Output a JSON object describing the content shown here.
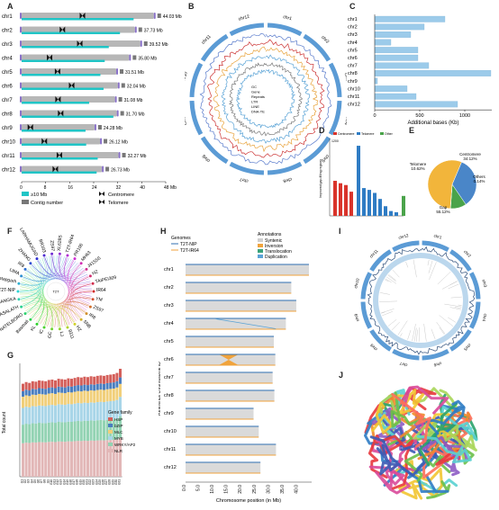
{
  "panels": {
    "a": {
      "label": "A",
      "rows": [
        {
          "chr": "chr1",
          "size": "44.03 Mb",
          "len": 44.03,
          "cen": 0.46
        },
        {
          "chr": "chr2",
          "size": "37.73 Mb",
          "len": 37.73,
          "cen": 0.36
        },
        {
          "chr": "chr3",
          "size": "39.52 Mb",
          "len": 39.52,
          "cen": 0.49
        },
        {
          "chr": "chr4",
          "size": "35.80 Mb",
          "len": 35.8,
          "cen": 0.26
        },
        {
          "chr": "chr5",
          "size": "31.51 Mb",
          "len": 31.51,
          "cen": 0.38
        },
        {
          "chr": "chr6",
          "size": "32.04 Mb",
          "len": 32.04,
          "cen": 0.52
        },
        {
          "chr": "chr7",
          "size": "31.08 Mb",
          "len": 31.08,
          "cen": 0.39
        },
        {
          "chr": "chr8",
          "size": "31.70 Mb",
          "len": 31.7,
          "cen": 0.41
        },
        {
          "chr": "chr9",
          "size": "24.28 Mb",
          "len": 24.28,
          "cen": 0.12
        },
        {
          "chr": "chr10",
          "size": "26.12 Mb",
          "len": 26.12,
          "cen": 0.29
        },
        {
          "chr": "chr11",
          "size": "32.27 Mb",
          "len": 32.27,
          "cen": 0.39
        },
        {
          "chr": "chr12",
          "size": "26.73 Mb",
          "len": 26.73,
          "cen": 0.42
        }
      ],
      "ticks": [
        "0",
        "8",
        "16",
        "24",
        "32",
        "40",
        "48 Mb"
      ],
      "legend": [
        "≥10 Mb",
        "Centromere",
        "Contig number",
        "Telomere"
      ]
    },
    "b": {
      "label": "B",
      "tracks": [
        "GC",
        "Gene",
        "Repeats",
        "LTR",
        "LINE",
        "DNA-TE"
      ],
      "chrs": [
        "chr1",
        "chr2",
        "chr3",
        "chr4",
        "chr5",
        "chr6",
        "chr7",
        "chr8",
        "chr9",
        "chr10",
        "chr11",
        "chr12"
      ]
    },
    "c": {
      "label": "C",
      "chart_data": {
        "type": "bar",
        "categories": [
          "chr1",
          "chr2",
          "chr3",
          "chr4",
          "chr5",
          "chr6",
          "chr7",
          "chr8",
          "chr9",
          "chr10",
          "chr11",
          "chr12"
        ],
        "values": [
          780,
          550,
          400,
          180,
          480,
          480,
          600,
          1290,
          30,
          360,
          460,
          920
        ],
        "xlabel": "Additional bases (Kb)",
        "xticks": [
          "0",
          "500",
          "1000"
        ],
        "xlim": [
          0,
          1300
        ]
      }
    },
    "d": {
      "label": "D",
      "ylabel": "Improved gap-filling regions",
      "legend": [
        "Centromere",
        "Telomere",
        "Other"
      ],
      "ytick_top": "1200",
      "chart_data": {
        "type": "bar",
        "series": [
          {
            "name": "Centromere",
            "values": [
              580,
              540,
              510,
              400
            ]
          },
          {
            "name": "Telomere",
            "values": [
              1160,
              460,
              430,
              380,
              280,
              160,
              80,
              60
            ]
          },
          {
            "name": "Other",
            "values": [
              330,
              60
            ]
          }
        ],
        "ylim": [
          0,
          1250
        ]
      }
    },
    "e": {
      "label": "E",
      "chart_data": {
        "type": "pie",
        "slices": [
          {
            "name": "Centromere",
            "value": 34.12,
            "text": "34.12%"
          },
          {
            "name": "Telomere",
            "value": 10.62,
            "text": "10.62%"
          },
          {
            "name": "Others",
            "value": 0.14,
            "text": "0.14%"
          },
          {
            "name": "Gap",
            "value": 55.12,
            "text": "55.12%"
          }
        ]
      }
    },
    "f": {
      "label": "F",
      "center": "T2T",
      "names": [
        "IR64",
        "YM",
        "ZS97",
        "IR8",
        "SNB",
        "HZ",
        "9311",
        "LJ",
        "GC",
        "IC",
        "KL",
        "Basmati",
        "NATELBORO",
        "KASALATH",
        "KETANNANGKA",
        "T2T-NIP",
        "Pratapgarh",
        "LIMA",
        "IR8",
        "ZHANG",
        "LARHAMUGAD",
        "BR103",
        "ZS97",
        "XL628S",
        "T2T-IR64",
        "PR106",
        "MH63",
        "J4155S",
        "HZ",
        "TAIPEI309"
      ]
    },
    "g": {
      "label": "G",
      "ylabel": "Total count",
      "legend_title": "Gene family",
      "legend": [
        "HSP",
        "bZIP",
        "MLC",
        "MYB",
        "WRKY/AP2",
        "NLR"
      ],
      "colors": [
        "#d45f5a",
        "#4a7ec0",
        "#f1cf7a",
        "#a8d5e8",
        "#93d3b3",
        "#e2b7b7"
      ],
      "chart_data": {
        "type": "bar",
        "categories": [
          "G1",
          "G2",
          "G3",
          "G4",
          "G5",
          "G6",
          "G7",
          "G8",
          "G9",
          "G10",
          "G11",
          "G12",
          "G13",
          "G14",
          "G15",
          "G16",
          "G17",
          "G18",
          "G19",
          "G20",
          "G21",
          "G22",
          "G23",
          "G24",
          "G25",
          "G26",
          "G27",
          "G28",
          "G29",
          "G30",
          "G31"
        ],
        "values": [
          1120,
          1140,
          1130,
          1150,
          1145,
          1160,
          1155,
          1150,
          1165,
          1170,
          1160,
          1180,
          1175,
          1170,
          1185,
          1180,
          1190,
          1200,
          1195,
          1205,
          1200,
          1210,
          1205,
          1215,
          1220,
          1215,
          1225,
          1230,
          1235,
          1250,
          1300
        ],
        "ylim": [
          0,
          1300
        ]
      }
    },
    "h": {
      "label": "H",
      "genomes_title": "Genomes",
      "genomes": [
        "T2T-NIP",
        "T2T-IR64"
      ],
      "annotations_title": "Annotations",
      "annotations": [
        "Syntenic",
        "Inversion",
        "Translocation",
        "Duplication"
      ],
      "ylabel": "Reference chromosome ID",
      "xlabel": "Chromosome position (in Mb)",
      "xticks": [
        "0.0",
        "5.0",
        "10.0",
        "15.0",
        "20.0",
        "25.0",
        "30.0",
        "35.0",
        "40.0"
      ],
      "chrs": [
        "chr1",
        "chr2",
        "chr3",
        "chr4",
        "chr5",
        "chr6",
        "chr7",
        "chr8",
        "chr9",
        "chr10",
        "chr11",
        "chr12"
      ]
    },
    "i": {
      "label": "I",
      "chrs": [
        "chr1",
        "chr2",
        "chr3",
        "chr4",
        "chr5",
        "chr6",
        "chr7",
        "chr8",
        "chr9",
        "chr10",
        "chr11",
        "chr12"
      ]
    },
    "j": {
      "label": "J"
    }
  },
  "colors": {
    "teal": "#20c5c6",
    "grey": "#b7b7b7",
    "purple": "#8a72c9",
    "blue": "#5aa3d6",
    "red": "#d9342b",
    "green": "#4aa34a",
    "orange": "#f0a33c"
  }
}
